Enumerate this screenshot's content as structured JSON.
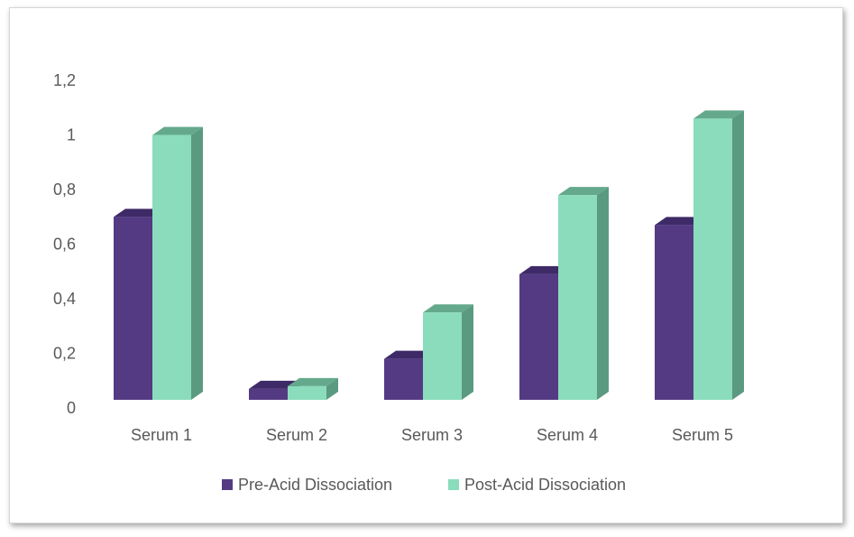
{
  "chart_data": {
    "type": "bar",
    "style": "3d-clustered-column",
    "categories": [
      "Serum 1",
      "Serum 2",
      "Serum 3",
      "Serum 4",
      "Serum 5"
    ],
    "series": [
      {
        "name": "Pre-Acid Dissociation",
        "values": [
          0.67,
          0.04,
          0.15,
          0.46,
          0.64
        ],
        "color": "#543a83",
        "side_color": "#3a2760",
        "top_color": "#3e2a67"
      },
      {
        "name": "Post-Acid Dissociation",
        "values": [
          0.97,
          0.05,
          0.32,
          0.75,
          1.03
        ],
        "color": "#8adcbc",
        "side_color": "#5a9a80",
        "top_color": "#64a98c"
      }
    ],
    "ylim": [
      0,
      1.2
    ],
    "yticks": [
      "0",
      "0,2",
      "0,4",
      "0,6",
      "0,8",
      "1",
      "1,2"
    ],
    "ytick_values": [
      0,
      0.2,
      0.4,
      0.6,
      0.8,
      1.0,
      1.2
    ],
    "grid": false,
    "legend_position": "bottom",
    "title": "",
    "xlabel": "",
    "ylabel": ""
  }
}
